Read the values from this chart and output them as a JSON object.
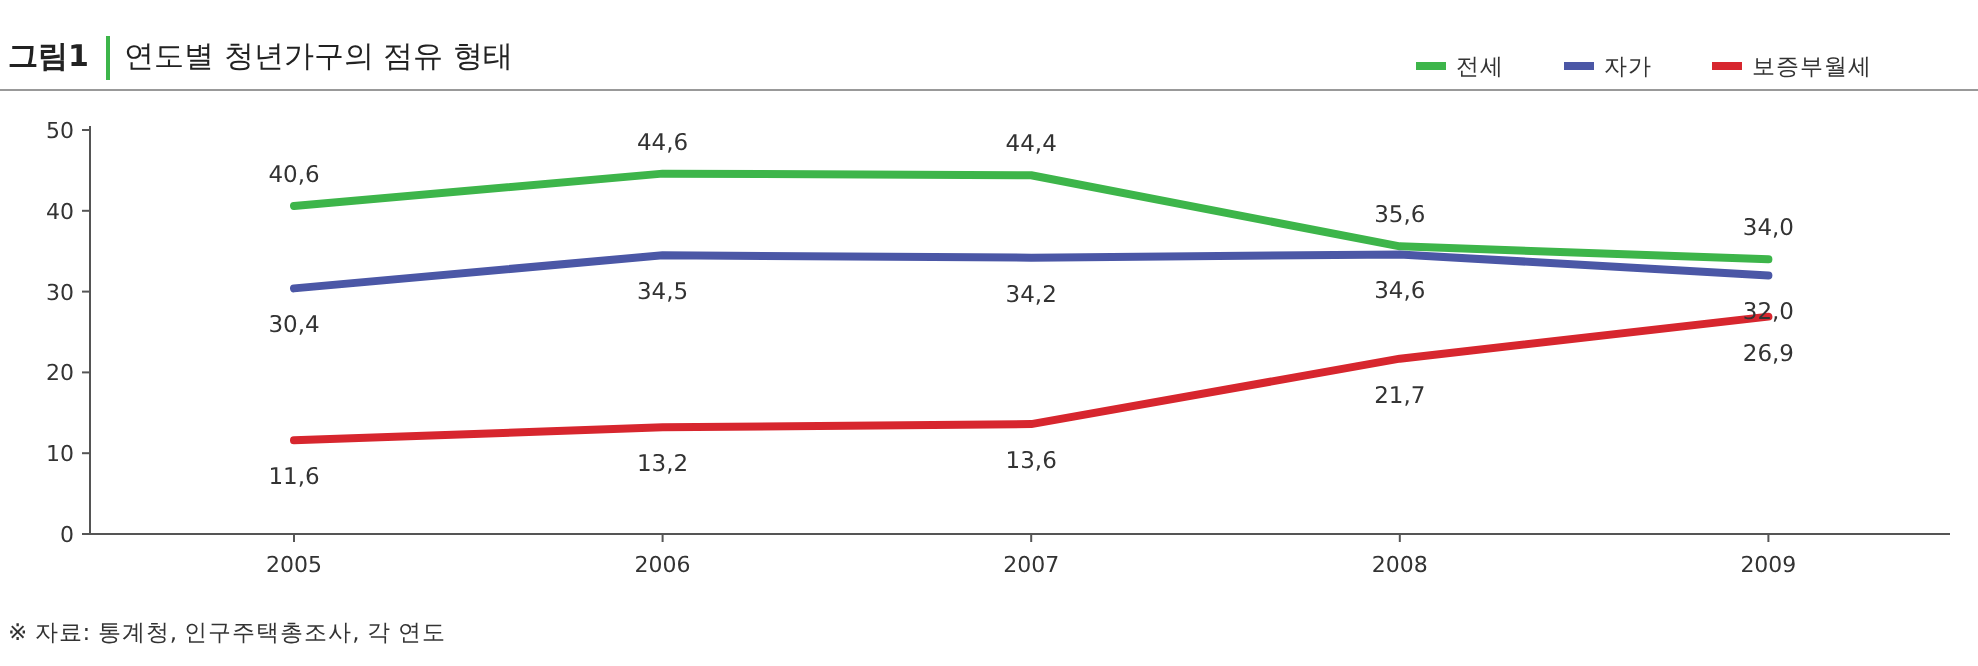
{
  "chart_data": {
    "type": "line",
    "title": "연도별 청년가구의 점유 형태",
    "annotations": [
      "그림1",
      "※ 자료: 통계청, 인구주택총조사, 각 연도"
    ],
    "categories": [
      "2005",
      "2006",
      "2007",
      "2008",
      "2009"
    ],
    "series": [
      {
        "name": "전세",
        "color": "#3db54a",
        "values": [
          40.6,
          44.6,
          44.4,
          35.6,
          34.0
        ],
        "value_labels": [
          "40,6",
          "44,6",
          "44,4",
          "35,6",
          "34,0"
        ]
      },
      {
        "name": "자가",
        "color": "#4b57a6",
        "values": [
          30.4,
          34.5,
          34.2,
          34.6,
          32.0
        ],
        "value_labels": [
          "30,4",
          "34,5",
          "34,2",
          "34,6",
          "32,0"
        ]
      },
      {
        "name": "보증부월세",
        "color": "#d7262e",
        "values": [
          11.6,
          13.2,
          13.6,
          21.7,
          26.9
        ],
        "value_labels": [
          "11,6",
          "13,2",
          "13,6",
          "21,7",
          "26,9"
        ]
      }
    ],
    "ylim": [
      0,
      50
    ],
    "yticks": [
      0,
      10,
      20,
      30,
      40,
      50
    ],
    "grid": false,
    "legend": "top right",
    "marker": "none",
    "line_style": "solid"
  }
}
